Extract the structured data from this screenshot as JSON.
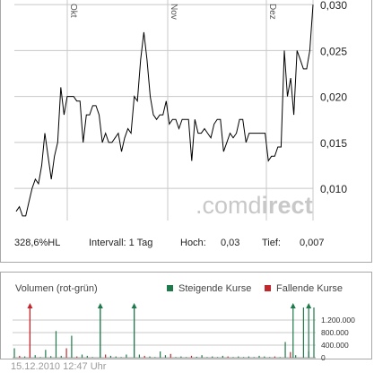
{
  "chart_data": [
    {
      "type": "line",
      "title": "",
      "xlabel": "",
      "ylabel": "",
      "x_month_labels": [
        "Okt",
        "Nov",
        "Dez"
      ],
      "y_ticks": [
        "0,030",
        "0,025",
        "0,020",
        "0,015",
        "0,010"
      ],
      "y_tick_values": [
        0.03,
        0.025,
        0.02,
        0.015,
        0.01
      ],
      "ylim": [
        0.0065,
        0.0305
      ],
      "grid": true,
      "series": [
        {
          "values": [
            0.0075,
            0.008,
            0.007,
            0.007,
            0.0085,
            0.01,
            0.011,
            0.0105,
            0.0125,
            0.016,
            0.0135,
            0.011,
            0.0135,
            0.015,
            0.021,
            0.018,
            0.02,
            0.02,
            0.02,
            0.0195,
            0.0195,
            0.015,
            0.018,
            0.018,
            0.019,
            0.019,
            0.018,
            0.015,
            0.016,
            0.015,
            0.015,
            0.0155,
            0.016,
            0.014,
            0.0155,
            0.0165,
            0.016,
            0.02,
            0.0195,
            0.024,
            0.027,
            0.024,
            0.02,
            0.018,
            0.0175,
            0.018,
            0.018,
            0.0195,
            0.017,
            0.0175,
            0.0175,
            0.0165,
            0.0175,
            0.0175,
            0.0175,
            0.013,
            0.0175,
            0.016,
            0.016,
            0.0165,
            0.016,
            0.0155,
            0.017,
            0.0175,
            0.0175,
            0.014,
            0.015,
            0.016,
            0.0155,
            0.016,
            0.0175,
            0.0175,
            0.015,
            0.016,
            0.016,
            0.016,
            0.016,
            0.016,
            0.016,
            0.013,
            0.0135,
            0.0135,
            0.0145,
            0.0145,
            0.025,
            0.02,
            0.022,
            0.018,
            0.025,
            0.024,
            0.023,
            0.023,
            0.025,
            0.03
          ]
        }
      ]
    },
    {
      "type": "bar",
      "title": "Volumen (rot-grün)",
      "legend": [
        {
          "name": "Steigende Kurse",
          "color": "#1e7a4a"
        },
        {
          "name": "Fallende Kurse",
          "color": "#c0282d"
        }
      ],
      "legend_position": "top-right",
      "y_ticks": [
        "1.200.000",
        "800.000",
        "400.000",
        "0"
      ],
      "y_tick_values": [
        1200000,
        800000,
        400000,
        0
      ],
      "ylim": [
        0,
        1600000
      ],
      "arrows": [
        {
          "bar": 6,
          "color": "#c0282d"
        },
        {
          "bar": 33,
          "color": "#1e7a4a"
        },
        {
          "bar": 46,
          "color": "#1e7a4a"
        },
        {
          "bar": 107,
          "color": "#1e7a4a"
        },
        {
          "bar": 113,
          "color": "#1e7a4a"
        }
      ],
      "values": [
        300000,
        0,
        60000,
        0,
        40000,
        0,
        1600000,
        0,
        80000,
        0,
        20000,
        0,
        250000,
        0,
        50000,
        0,
        850000,
        0,
        60000,
        0,
        300000,
        0,
        700000,
        0,
        40000,
        0,
        100000,
        0,
        60000,
        0,
        20000,
        0,
        0,
        1600000,
        0,
        100000,
        0,
        60000,
        0,
        40000,
        0,
        20000,
        0,
        100000,
        0,
        0,
        1600000,
        0,
        100000,
        0,
        60000,
        0,
        40000,
        0,
        20000,
        0,
        200000,
        0,
        80000,
        0,
        120000,
        0,
        20000,
        0,
        40000,
        0,
        20000,
        0,
        60000,
        0,
        30000,
        0,
        80000,
        0,
        20000,
        0,
        40000,
        0,
        20000,
        0,
        60000,
        0,
        40000,
        0,
        20000,
        0,
        40000,
        0,
        20000,
        0,
        40000,
        0,
        20000,
        0,
        60000,
        0,
        40000,
        0,
        20000,
        0,
        40000,
        0,
        20000,
        0,
        500000,
        0,
        180000,
        0,
        80000,
        0,
        0,
        1600000,
        0,
        200000,
        0,
        1600000
      ],
      "colors": [
        "g",
        "g",
        "r",
        "g",
        "g",
        "g",
        "r",
        "g",
        "g",
        "g",
        "g",
        "g",
        "g",
        "g",
        "g",
        "g",
        "g",
        "g",
        "g",
        "g",
        "r",
        "g",
        "g",
        "g",
        "r",
        "g",
        "g",
        "g",
        "g",
        "g",
        "g",
        "g",
        "g",
        "g",
        "g",
        "r",
        "g",
        "g",
        "g",
        "g",
        "g",
        "g",
        "g",
        "g",
        "g",
        "g",
        "g",
        "g",
        "g",
        "g",
        "r",
        "g",
        "g",
        "g",
        "g",
        "g",
        "g",
        "g",
        "g",
        "g",
        "r",
        "g",
        "g",
        "g",
        "g",
        "g",
        "g",
        "g",
        "r",
        "g",
        "g",
        "g",
        "g",
        "g",
        "g",
        "g",
        "g",
        "g",
        "g",
        "g",
        "g",
        "g",
        "r",
        "g",
        "g",
        "g",
        "g",
        "g",
        "g",
        "g",
        "g",
        "g",
        "g",
        "g",
        "g",
        "g",
        "g",
        "g",
        "g",
        "g",
        "r",
        "g",
        "g",
        "g",
        "g",
        "g",
        "r",
        "g",
        "g",
        "g",
        "g",
        "g",
        "r",
        "g",
        "g",
        "g"
      ]
    }
  ],
  "stats": {
    "change": "328,6%HL",
    "interval": "Intervall: 1 Tag",
    "high_label": "Hoch:",
    "high_value": "0,03",
    "low_label": "Tief:",
    "low_value": "0,007"
  },
  "watermark": {
    "part1": ".comd",
    "part2": "irect"
  },
  "timestamp": "15.12.2010 12:47 Uhr",
  "colors": {
    "green": "#1e7a4a",
    "red": "#c0282d",
    "grid": "#c8c8c8",
    "line": "#000000"
  }
}
